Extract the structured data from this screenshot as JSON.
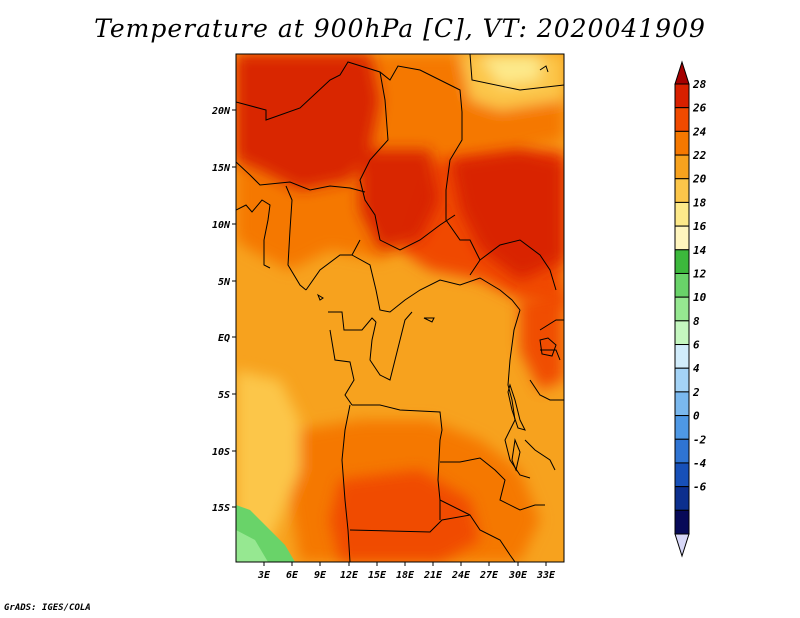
{
  "title": "Temperature at 900hPa [C], VT: 2020041909",
  "credit": "GrADS: IGES/COLA",
  "map": {
    "lat_labels": [
      "20N",
      "15N",
      "10N",
      "5N",
      "EQ",
      "5S",
      "10S",
      "15S"
    ],
    "lon_labels": [
      "3E",
      "6E",
      "9E",
      "12E",
      "15E",
      "18E",
      "21E",
      "24E",
      "27E",
      "30E",
      "33E"
    ]
  },
  "colorbar": {
    "levels": [
      "28",
      "26",
      "24",
      "22",
      "20",
      "18",
      "16",
      "14",
      "12",
      "10",
      "8",
      "6",
      "4",
      "2",
      "0",
      "-2",
      "-4",
      "-6"
    ],
    "colors": [
      "#a50000",
      "#d82000",
      "#f04a00",
      "#f57800",
      "#f7a21e",
      "#fcc64a",
      "#fde98a",
      "#fff5be",
      "#3cb83c",
      "#69d369",
      "#96e891",
      "#c5f7c0",
      "#d1ecfb",
      "#a4d3f6",
      "#7ab8ee",
      "#4e98e5",
      "#2f74d3",
      "#1750b8",
      "#0c2f8e",
      "#070a58",
      "#d8d8f8"
    ]
  }
}
